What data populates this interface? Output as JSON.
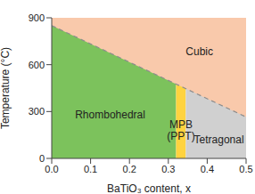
{
  "chart_data": {
    "type": "area",
    "xlabel": "BaTiO₃ content, x",
    "ylabel": "Temperature (°C)",
    "xlim": [
      0,
      0.5
    ],
    "ylim": [
      0,
      900
    ],
    "xticks": [
      {
        "value": 0,
        "label": "0.0"
      },
      0.1,
      0.2,
      0.3,
      0.4,
      0.5
    ],
    "yticks": [
      0,
      300,
      600,
      900
    ],
    "boundary": {
      "x": [
        0,
        0.5
      ],
      "values": [
        850,
        265
      ],
      "color": "#8c8c8c",
      "line_style": "dashed"
    },
    "regions": [
      {
        "name": "Rhombohedral",
        "x": [
          0,
          0.32
        ],
        "color": "#7cc25c"
      },
      {
        "name": "MPB (PPT)",
        "x": [
          0.32,
          0.345
        ],
        "color": "#ffd33f"
      },
      {
        "name": "Tetragonal",
        "x": [
          0.345,
          0.5
        ],
        "color": "#d0d0d0"
      }
    ],
    "above": {
      "name": "Cubic",
      "color": "#f9c9ab"
    }
  }
}
